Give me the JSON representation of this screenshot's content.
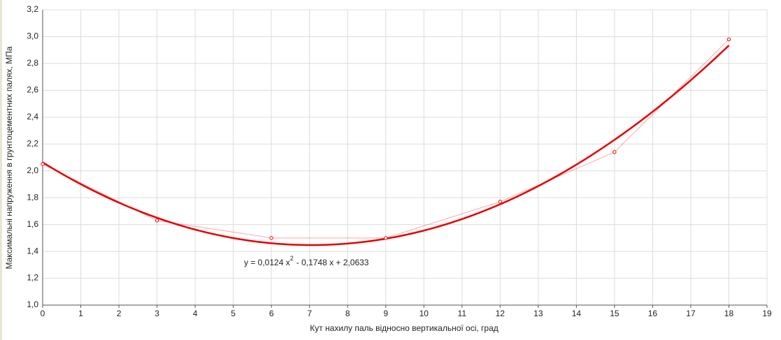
{
  "chart_data": {
    "type": "line",
    "x_label": "Кут нахилу паль відносно вертикальної осі, град",
    "y_label": "Максимальні напруження в грунтоцементних палях, МПа",
    "x": [
      0,
      3,
      6,
      9,
      12,
      15,
      18
    ],
    "series": [
      {
        "name": "Максимальні напруження",
        "color": "#ff0000",
        "values": [
          2.05,
          1.63,
          1.5,
          1.5,
          1.77,
          2.14,
          2.98
        ]
      }
    ],
    "trendline": {
      "type": "polynomial",
      "color": "#e60000",
      "coefficients": [
        0.0124,
        -0.1748,
        2.0633
      ],
      "equation": "y = 0,0124 x",
      "exponent": "2",
      "equation_rest": "- 0,1748 x + 2,0633"
    },
    "xlim": [
      0,
      19
    ],
    "xticks": [
      0,
      1,
      2,
      3,
      4,
      5,
      6,
      7,
      8,
      9,
      10,
      11,
      12,
      13,
      14,
      15,
      16,
      17,
      18,
      19
    ],
    "ylim": [
      1.0,
      3.2
    ],
    "yticks": [
      {
        "value": 1.0,
        "label": "1,0"
      },
      {
        "value": 1.2,
        "label": "1,2"
      },
      {
        "value": 1.4,
        "label": "1,4"
      },
      {
        "value": 1.6,
        "label": "1,6"
      },
      {
        "value": 1.8,
        "label": "1,8"
      },
      {
        "value": 2.0,
        "label": "2,0"
      },
      {
        "value": 2.2,
        "label": "2,2"
      },
      {
        "value": 2.4,
        "label": "2,4"
      },
      {
        "value": 2.6,
        "label": "2,6"
      },
      {
        "value": 2.8,
        "label": "2,8"
      },
      {
        "value": 3.0,
        "label": "3,0"
      },
      {
        "value": 3.2,
        "label": "3,2"
      }
    ],
    "grid": true
  }
}
